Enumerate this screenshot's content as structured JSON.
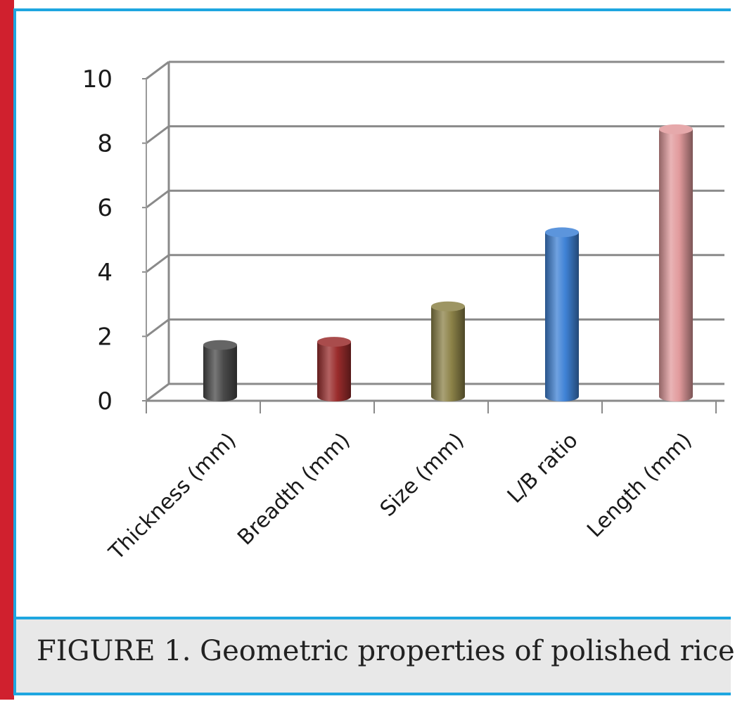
{
  "figure": {
    "caption": "FIGURE 1. Geometric properties of polished rice"
  },
  "colors": {
    "accent": "#d0202e",
    "frame": "#1ea6e0",
    "caption_bg": "#e8e8e8"
  },
  "chart_data": {
    "type": "bar",
    "style": "3d-cylinder",
    "categories": [
      "Thickness (mm)",
      "Breadth (mm)",
      "Size (mm)",
      "L/B ratio",
      "Length (mm)"
    ],
    "values": [
      1.6,
      1.7,
      2.8,
      5.1,
      8.3
    ],
    "bar_colors": [
      "#4a4a4a",
      "#9a2c2c",
      "#8c8248",
      "#3f82d6",
      "#e19a9c"
    ],
    "yticks": [
      "0",
      "2",
      "4",
      "6",
      "8",
      "10"
    ],
    "ylim": [
      0,
      10
    ],
    "title": "",
    "xlabel": "",
    "ylabel": "",
    "grid": true,
    "legend": "none"
  }
}
